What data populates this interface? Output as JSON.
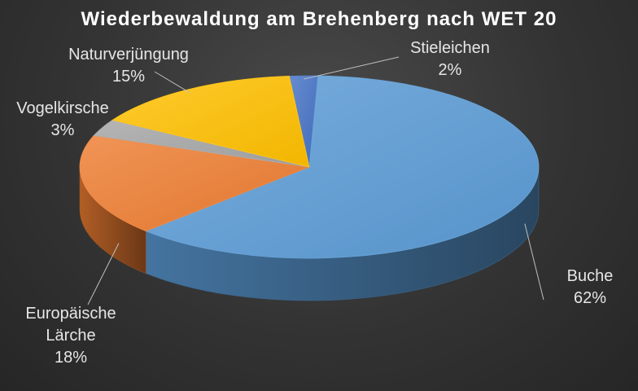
{
  "chart_data": {
    "type": "pie",
    "title": "Wiederbewaldung  am Brehenberg  nach WET 20",
    "slices": [
      {
        "label": "Stieleichen",
        "value_label": "2%",
        "value": 2,
        "color": "#4472c4"
      },
      {
        "label": "Buche",
        "value_label": "62%",
        "value": 62,
        "color": "#5b9bd5"
      },
      {
        "label": "Europäische Lärche",
        "label_lines": [
          "Europäische",
          "Lärche"
        ],
        "value_label": "18%",
        "value": 18,
        "color": "#ed7d31"
      },
      {
        "label": "Vogelkirsche",
        "value_label": "3%",
        "value": 3,
        "color": "#a5a5a5"
      },
      {
        "label": "Naturverjüngung",
        "value_label": "15%",
        "value": 15,
        "color": "#ffc000"
      }
    ],
    "three_d": true,
    "legend": "none",
    "data_labels": "outside with leader lines"
  }
}
